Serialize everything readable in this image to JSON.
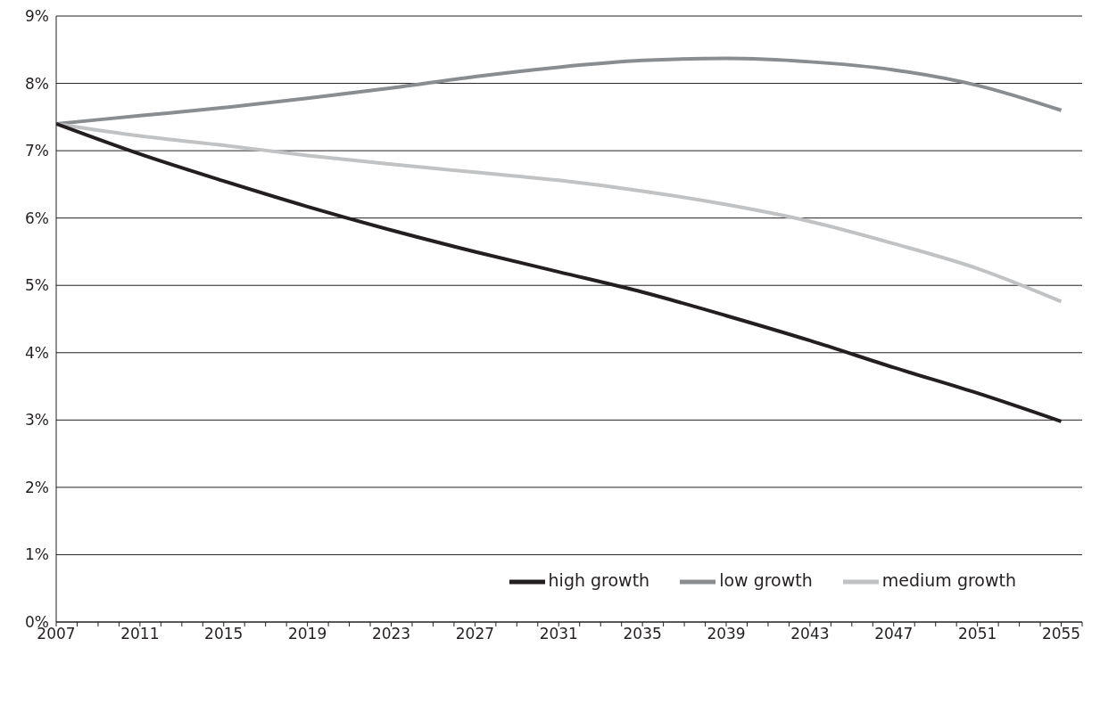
{
  "chart_data": {
    "type": "line",
    "x": [
      2007,
      2011,
      2015,
      2019,
      2023,
      2027,
      2031,
      2035,
      2039,
      2043,
      2047,
      2051,
      2055
    ],
    "series": [
      {
        "name": "low growth",
        "color": "#8a8d90",
        "values": [
          7.4,
          7.52,
          7.64,
          7.78,
          7.93,
          8.1,
          8.24,
          8.34,
          8.37,
          8.32,
          8.2,
          7.97,
          7.6
        ]
      },
      {
        "name": "medium growth",
        "color": "#c0c2c4",
        "values": [
          7.4,
          7.22,
          7.08,
          6.93,
          6.8,
          6.68,
          6.56,
          6.4,
          6.2,
          5.95,
          5.62,
          5.25,
          4.76
        ]
      },
      {
        "name": "high growth",
        "color": "#231f20",
        "values": [
          7.4,
          6.95,
          6.55,
          6.17,
          5.82,
          5.5,
          5.2,
          4.9,
          4.55,
          4.18,
          3.78,
          3.4,
          2.98
        ]
      }
    ],
    "xlim": [
      2007,
      2056
    ],
    "xticks": [
      2007,
      {
        "value": 2008,
        "label": null
      },
      {
        "value": 2009,
        "label": null
      },
      {
        "value": 2010,
        "label": null
      },
      2011,
      {
        "value": 2012,
        "label": null
      },
      {
        "value": 2013,
        "label": null
      },
      {
        "value": 2014,
        "label": null
      },
      2015,
      {
        "value": 2016,
        "label": null
      },
      {
        "value": 2017,
        "label": null
      },
      {
        "value": 2018,
        "label": null
      },
      2019,
      {
        "value": 2020,
        "label": null
      },
      {
        "value": 2021,
        "label": null
      },
      {
        "value": 2022,
        "label": null
      },
      2023,
      {
        "value": 2024,
        "label": null
      },
      {
        "value": 2025,
        "label": null
      },
      {
        "value": 2026,
        "label": null
      },
      2027,
      {
        "value": 2028,
        "label": null
      },
      {
        "value": 2029,
        "label": null
      },
      {
        "value": 2030,
        "label": null
      },
      2031,
      {
        "value": 2032,
        "label": null
      },
      {
        "value": 2033,
        "label": null
      },
      {
        "value": 2034,
        "label": null
      },
      2035,
      {
        "value": 2036,
        "label": null
      },
      {
        "value": 2037,
        "label": null
      },
      {
        "value": 2038,
        "label": null
      },
      2039,
      {
        "value": 2040,
        "label": null
      },
      {
        "value": 2041,
        "label": null
      },
      {
        "value": 2042,
        "label": null
      },
      2043,
      {
        "value": 2044,
        "label": null
      },
      {
        "value": 2045,
        "label": null
      },
      {
        "value": 2046,
        "label": null
      },
      2047,
      {
        "value": 2048,
        "label": null
      },
      {
        "value": 2049,
        "label": null
      },
      {
        "value": 2050,
        "label": null
      },
      2051,
      {
        "value": 2052,
        "label": null
      },
      {
        "value": 2053,
        "label": null
      },
      {
        "value": 2054,
        "label": null
      },
      2055,
      {
        "value": 2056,
        "label": null
      }
    ],
    "ylim": [
      0,
      9
    ],
    "yticks": [
      {
        "value": 0,
        "label": "0%"
      },
      {
        "value": 1,
        "label": "1%"
      },
      {
        "value": 2,
        "label": "2%"
      },
      {
        "value": 3,
        "label": "3%"
      },
      {
        "value": 4,
        "label": "4%"
      },
      {
        "value": 5,
        "label": "5%"
      },
      {
        "value": 6,
        "label": "6%"
      },
      {
        "value": 7,
        "label": "7%"
      },
      {
        "value": 8,
        "label": "8%"
      },
      {
        "value": 9,
        "label": "9%"
      }
    ],
    "grid": "y",
    "legend": "bottom right",
    "marker": "none",
    "line_style": "solid"
  }
}
